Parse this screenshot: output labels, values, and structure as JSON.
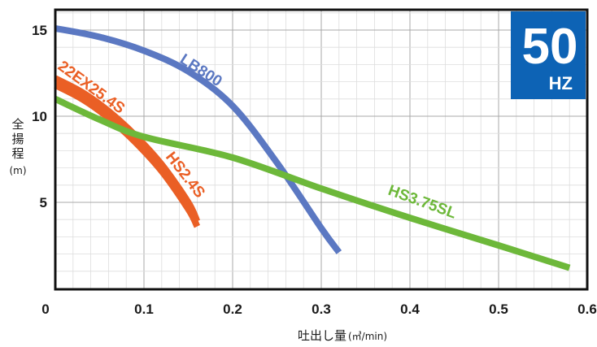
{
  "chart_data": {
    "type": "line",
    "xlabel": "吐出し量",
    "xlabel_unit": "(㎥/min)",
    "ylabel_chars": [
      "全",
      "揚",
      "程"
    ],
    "ylabel_unit": "(m)",
    "xlim": [
      0,
      0.6
    ],
    "ylim": [
      0,
      16
    ],
    "x_ticks": [
      0,
      0.1,
      0.2,
      0.3,
      0.4,
      0.5,
      0.6
    ],
    "x_tick_labels": [
      "0",
      "0.1",
      "0.2",
      "0.3",
      "0.4",
      "0.5",
      "0.6"
    ],
    "y_ticks": [
      5,
      10,
      15
    ],
    "y_tick_labels": [
      "5",
      "10",
      "15"
    ],
    "grid": true,
    "badge": {
      "frequency": "50",
      "unit": "HZ",
      "color": "#0d63b5"
    },
    "series": [
      {
        "name": "LB800",
        "color": "#5b78c2",
        "points": [
          [
            0,
            15.1
          ],
          [
            0.05,
            14.6
          ],
          [
            0.1,
            13.8
          ],
          [
            0.15,
            12.6
          ],
          [
            0.2,
            10.6
          ],
          [
            0.25,
            7.3
          ],
          [
            0.3,
            3.5
          ],
          [
            0.32,
            2.1
          ]
        ]
      },
      {
        "name": "22EX25.4S",
        "color": "#ea5f25",
        "points": [
          [
            0,
            12.2
          ],
          [
            0.03,
            11.4
          ],
          [
            0.06,
            10.3
          ],
          [
            0.09,
            8.9
          ],
          [
            0.12,
            7.2
          ],
          [
            0.15,
            5.0
          ],
          [
            0.16,
            3.9
          ]
        ]
      },
      {
        "name": "HS2.4S",
        "color": "#ea5f25",
        "points": [
          [
            0,
            11.8
          ],
          [
            0.03,
            11.0
          ],
          [
            0.06,
            9.9
          ],
          [
            0.09,
            8.5
          ],
          [
            0.12,
            6.8
          ],
          [
            0.15,
            4.6
          ],
          [
            0.16,
            3.6
          ]
        ]
      },
      {
        "name": "HS3.75SL",
        "color": "#6db83a",
        "points": [
          [
            0,
            11.0
          ],
          [
            0.05,
            9.8
          ],
          [
            0.1,
            8.8
          ],
          [
            0.2,
            7.6
          ],
          [
            0.3,
            5.8
          ],
          [
            0.4,
            4.1
          ],
          [
            0.5,
            2.5
          ],
          [
            0.58,
            1.2
          ]
        ]
      }
    ]
  }
}
